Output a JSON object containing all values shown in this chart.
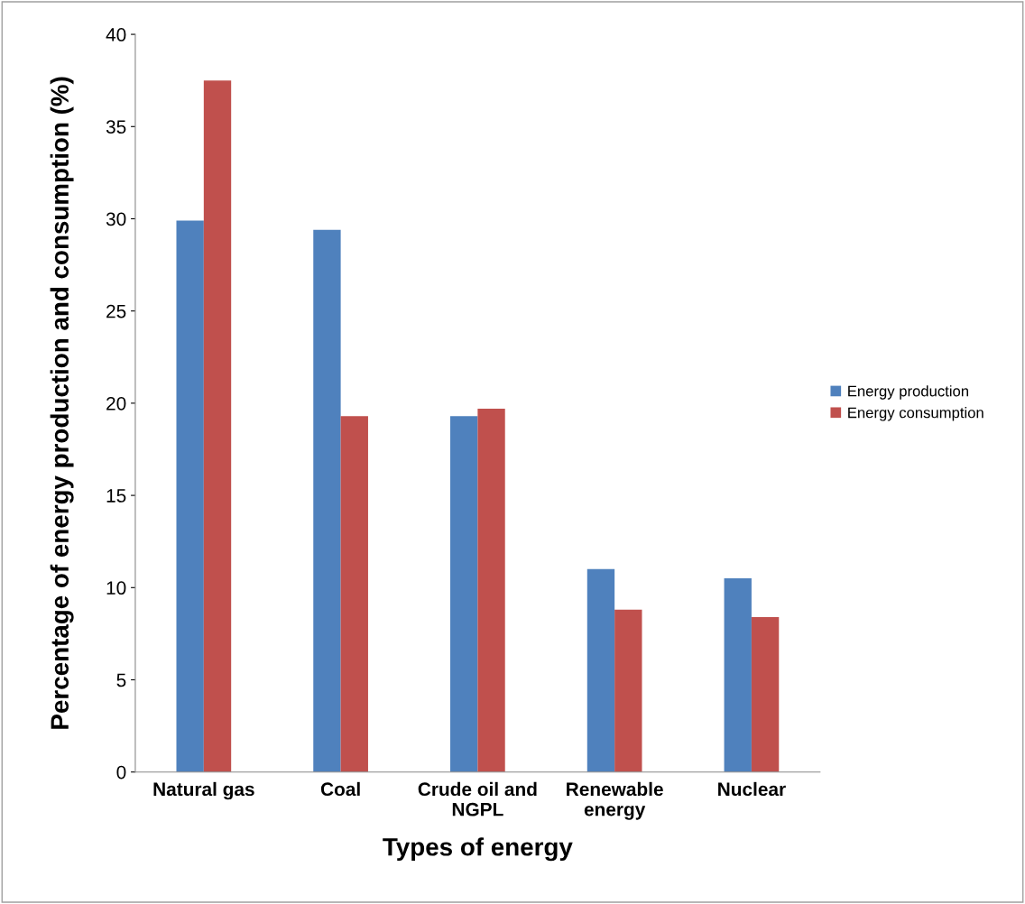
{
  "chart_data": {
    "type": "bar",
    "xlabel": "Types of energy",
    "ylabel": "Percentage of energy production and consumption (%)",
    "categories": [
      "Natural gas",
      "Coal",
      "Crude oil and\nNGPL",
      "Renewable\nenergy",
      "Nuclear"
    ],
    "series": [
      {
        "name": "Energy production",
        "color": "#4f81bd",
        "values": [
          29.9,
          29.4,
          19.3,
          11.0,
          10.5
        ]
      },
      {
        "name": "Energy consumption",
        "color": "#c0504d",
        "values": [
          37.5,
          19.3,
          19.7,
          8.8,
          8.4
        ]
      }
    ],
    "ylim": [
      0,
      40
    ],
    "yticks": [
      0,
      5,
      10,
      15,
      20,
      25,
      30,
      35,
      40
    ],
    "grid": false,
    "legend": "right"
  }
}
